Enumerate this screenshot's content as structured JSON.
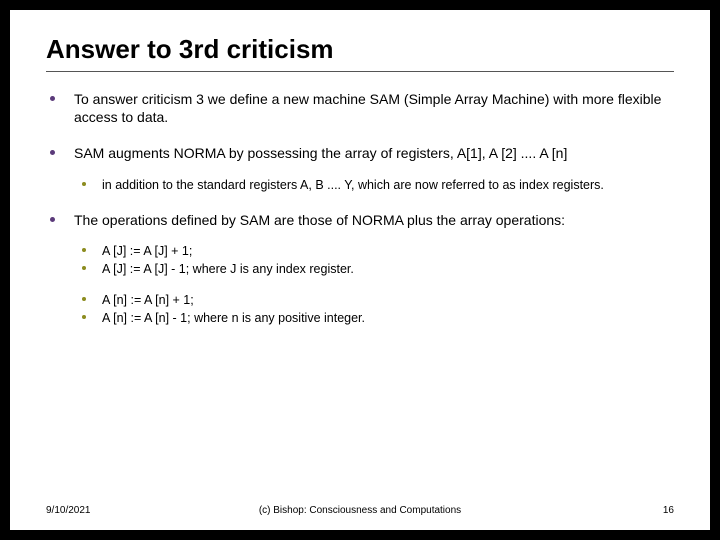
{
  "colors": {
    "page_bg": "#000000",
    "slide_bg": "#ffffff",
    "text": "#000000",
    "bullet_lvl1": "#5b3a7a",
    "bullet_lvl2": "#8c8c1f",
    "rule": "#555555"
  },
  "typography": {
    "title_fontsize": 26,
    "body_fontsize": 14,
    "sub_fontsize": 12.5,
    "footer_fontsize": 10,
    "family": "Arial"
  },
  "title": "Answer to 3rd criticism",
  "bullets": {
    "b1": "To answer criticism 3 we define a new machine SAM (Simple Array Machine) with more flexible access to data.",
    "b2": "SAM augments NORMA by possessing the array of registers, A[1], A [2] .... A [n]",
    "b2_sub1": "in addition to the standard registers A, B .... Y, which are now referred to as index registers.",
    "b3": "The operations defined by SAM are those of NORMA plus the array operations:",
    "b3_sub1": "A [J] := A [J] + 1;",
    "b3_sub2": "A [J] := A [J] - 1; where J is any index register.",
    "b3_sub3": "A [n] := A [n] + 1;",
    "b3_sub4": "A [n] := A [n] - 1; where n is any positive integer."
  },
  "footer": {
    "date": "9/10/2021",
    "center": "(c) Bishop: Consciousness and Computations",
    "page": "16"
  }
}
